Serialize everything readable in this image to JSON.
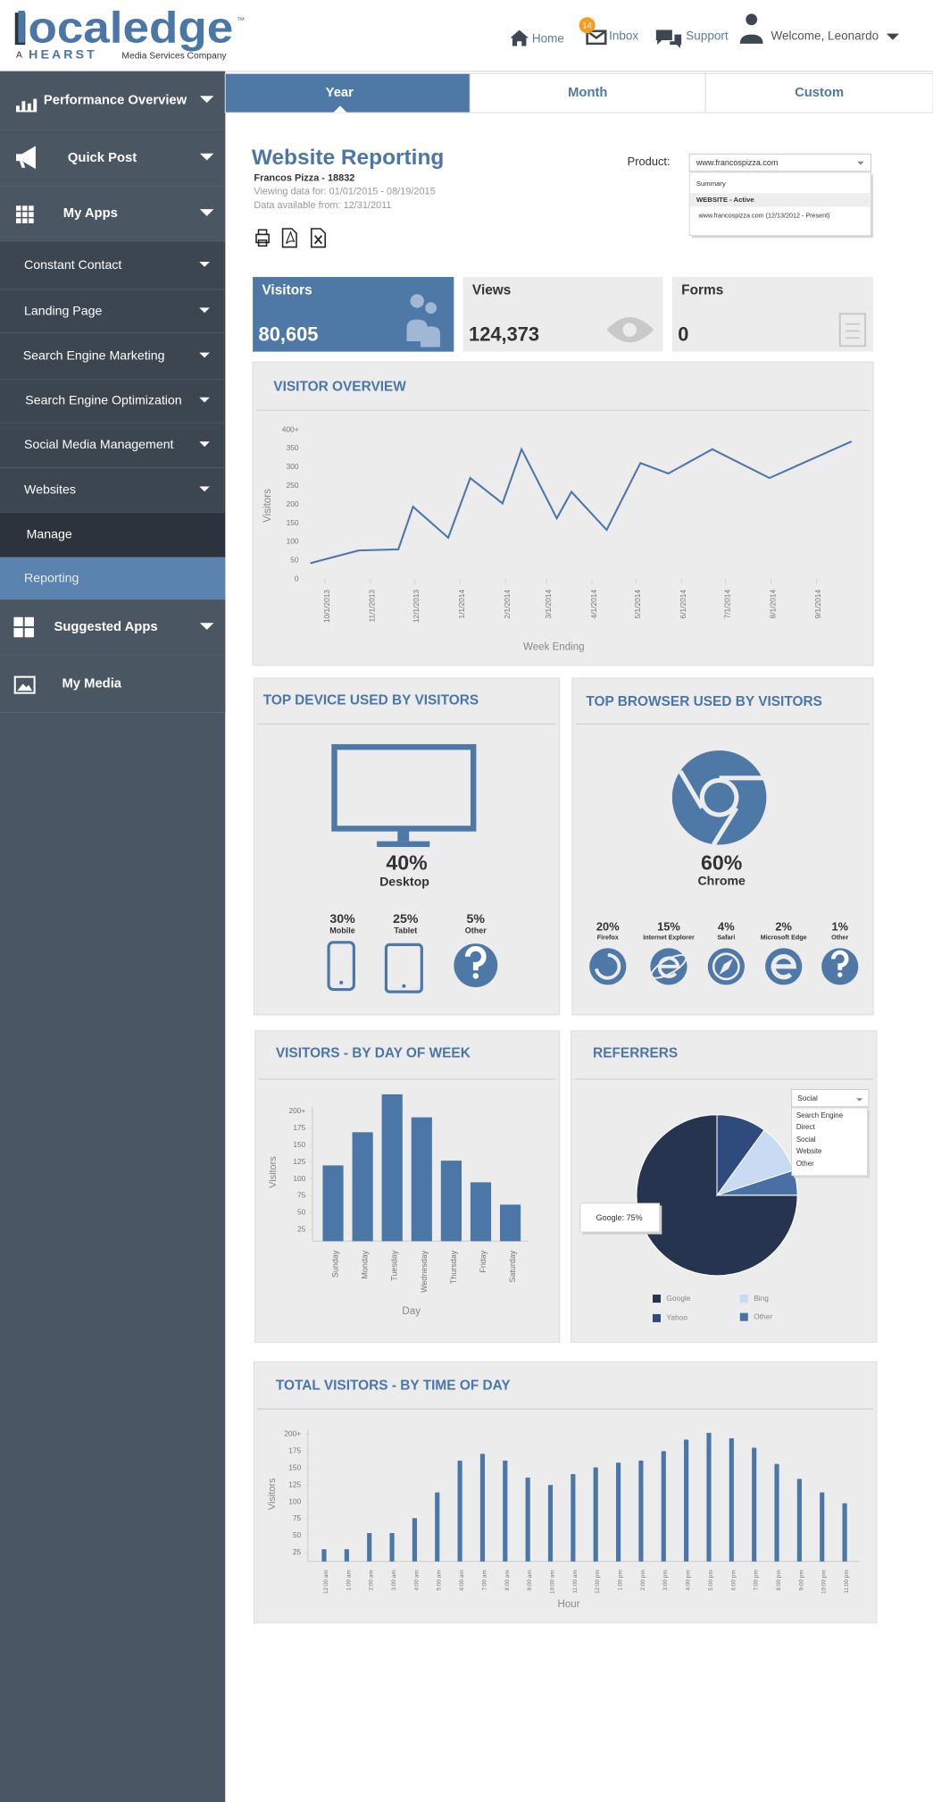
{
  "header": {
    "logo": {
      "name": "localedge",
      "trademark": "™",
      "prefix": "A",
      "brand": "HEARST",
      "tagline": "Media Services Company"
    },
    "nav": [
      {
        "label": "Home"
      },
      {
        "label": "Inbox",
        "badge": "14"
      },
      {
        "label": "Support"
      },
      {
        "label": "Welcome, Leonardo"
      }
    ]
  },
  "sidebar": {
    "items": [
      "Performance Overview",
      "Quick Post",
      "My Apps",
      "Constant Contact",
      "Landing Page",
      "Search Engine Marketing",
      "Search Engine Optimization",
      "Social Media Management",
      "Websites",
      "Manage",
      "Reporting",
      "Suggested Apps",
      "My Media"
    ]
  },
  "tabs": [
    "Year",
    "Month",
    "Custom"
  ],
  "report": {
    "title": "Website Reporting",
    "account": "Francos Pizza - 18832",
    "viewing": "Viewing data for: 01/01/2015 -  08/19/2015",
    "available": "Data available from: 12/31/2011",
    "product_label": "Product:",
    "product_selected": "www.francospizza.com",
    "product_options": [
      "Summary",
      "WEBSITE - Active",
      "www.francospizza.com (12/13/2012 - Present)"
    ]
  },
  "cards": [
    {
      "label": "Visitors",
      "value": "80,605"
    },
    {
      "label": "Views",
      "value": "124,373"
    },
    {
      "label": "Forms",
      "value": "0"
    }
  ],
  "visitor_overview": {
    "type": "line",
    "title": "VISITOR OVERVIEW",
    "y_label": "Visitors",
    "x_label": "Week Ending",
    "color": "#4a76a8",
    "x": [
      "9/21/2013",
      "10/24/2013",
      "11/20/2013",
      "11/30/2013",
      "12/24/2013",
      "1/8/2014",
      "1/30/2014",
      "2/12/2014",
      "3/8/2014",
      "3/18/2014",
      "4/11/2014",
      "5/4/2014",
      "5/23/2014",
      "6/22/2014",
      "7/31/2014",
      "9/25/2014"
    ],
    "values": [
      43,
      77,
      80,
      194,
      111,
      271,
      203,
      348,
      163,
      234,
      132,
      311,
      283,
      348,
      271,
      369
    ],
    "xlim": [
      "9/17/2013",
      "9/28/2014"
    ],
    "xticks": [
      "10/1/2013",
      "11/1/2013",
      "12/1/2013",
      "1/1/2014",
      "2/1/2014",
      "3/1/2014",
      "4/1/2014",
      "5/1/2014",
      "6/1/2014",
      "7/1/2014",
      "8/1/2014",
      "9/1/2014"
    ],
    "ylim": [
      0,
      400
    ],
    "yticks": [
      0,
      50,
      100,
      150,
      200,
      250,
      300,
      350,
      {
        "value": 400,
        "label": "400+"
      }
    ]
  },
  "top_device": {
    "title": "TOP DEVICE USED BY VISITORS",
    "categories": [
      "Desktop",
      "Mobile",
      "Tablet",
      "Other"
    ],
    "values": [
      40,
      30,
      25,
      5
    ],
    "value_labels": [
      "40%",
      "30%",
      "25%",
      "5%"
    ]
  },
  "top_browser": {
    "title": "TOP BROWSER USED BY VISITORS",
    "categories": [
      "Chrome",
      "Firefox",
      "Internet Explorer",
      "Safari",
      "Microsoft Edge",
      "Other"
    ],
    "values": [
      60,
      20,
      15,
      4,
      2,
      1
    ],
    "value_labels": [
      "60%",
      "20%",
      "15%",
      "4%",
      "2%",
      "1%"
    ]
  },
  "day_of_week": {
    "type": "bar",
    "title": "VISITORS - BY DAY OF WEEK",
    "y_label": "Visitors",
    "x_label": "Day",
    "color": "#4a76a8",
    "categories": [
      "Sunday",
      "Monday",
      "Tuesday",
      "Wednesday",
      "Thursday",
      "Friday",
      "Saturday"
    ],
    "values": [
      120,
      169,
      225,
      191,
      127,
      95,
      62
    ],
    "ylim": [
      8,
      230
    ],
    "yticks": [
      25,
      50,
      75,
      100,
      125,
      150,
      175,
      {
        "value": 200,
        "label": "200+"
      }
    ]
  },
  "referrers": {
    "type": "pie",
    "title": "REFERRERS",
    "categories": [
      "Google",
      "Yahoo",
      "Bing",
      "Other"
    ],
    "values": [
      75,
      10,
      10,
      5
    ],
    "colors": [
      "#263450",
      "#2f4a7c",
      "#c8dbf2",
      "#4a6fa5"
    ],
    "tooltip": "Google: 75%",
    "filter": {
      "selected": "Social",
      "options": [
        "Search Engine",
        "Direct",
        "Social",
        "Website",
        "Other"
      ]
    }
  },
  "time_of_day": {
    "type": "bar",
    "title": "TOTAL VISITORS - BY TIME OF DAY",
    "y_label": "Visitors",
    "x_label": "Hour",
    "color": "#4a76a8",
    "categories": [
      "12:00 am",
      "1:00 am",
      "2:00 am",
      "3:00 am",
      "4:00 am",
      "5:00 am",
      "6:00 am",
      "7:00 am",
      "8:00 am",
      "9:00 am",
      "10:00 am",
      "11:00 am",
      "12:00 pm",
      "1:00 pm",
      "2:00 pm",
      "3:00 pm",
      "4:00 pm",
      "5:00 pm",
      "6:00 pm",
      "7:00 pm",
      "8:00 pm",
      "9:00 pm",
      "10:00 pm",
      "11:00 pm"
    ],
    "values": [
      30,
      30,
      54,
      54,
      76,
      114,
      161,
      171,
      161,
      136,
      125,
      141,
      151,
      158,
      161,
      175,
      192,
      202,
      194,
      180,
      156,
      134,
      114,
      98
    ],
    "ylim": [
      12,
      210
    ],
    "yticks": [
      25,
      50,
      75,
      100,
      125,
      150,
      175,
      {
        "value": 200,
        "label": "200+"
      }
    ]
  }
}
